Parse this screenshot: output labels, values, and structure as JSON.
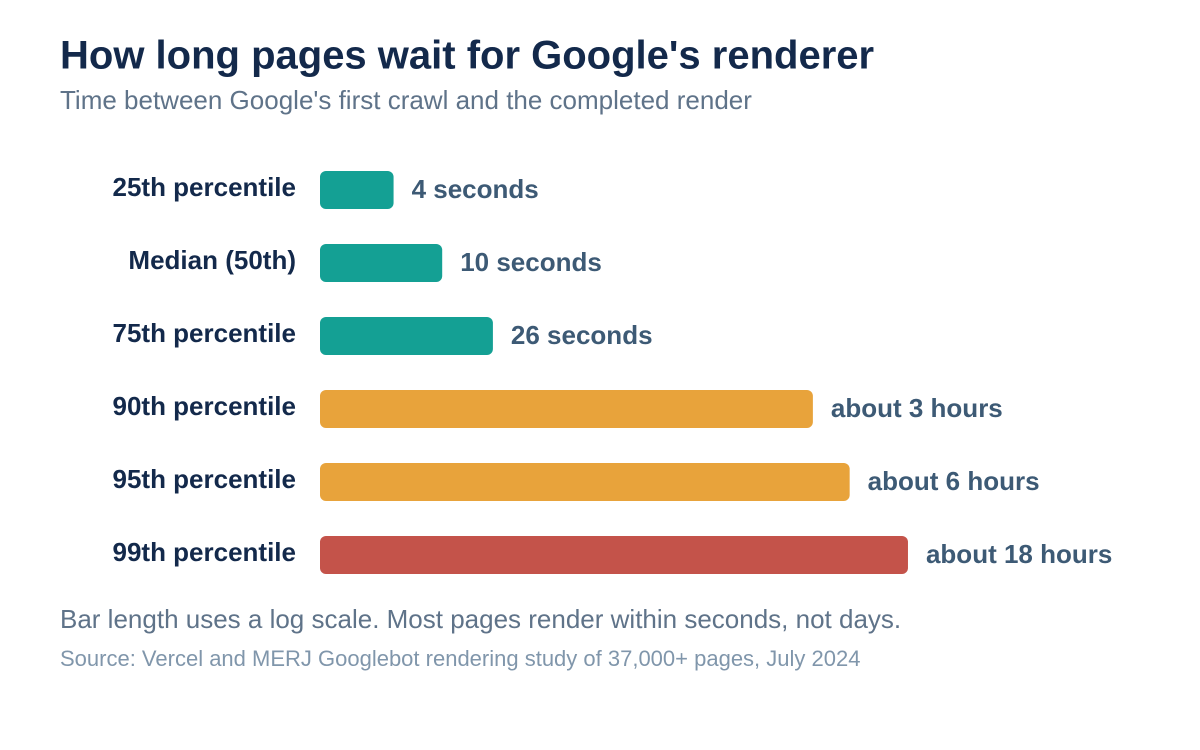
{
  "chart_data": {
    "type": "bar",
    "orientation": "horizontal",
    "log_scale": true,
    "title": "How long pages wait for Google's renderer",
    "subtitle": "Time between Google's first crawl and the completed render",
    "categories": [
      "25th percentile",
      "Median (50th)",
      "75th percentile",
      "90th percentile",
      "95th percentile",
      "99th percentile"
    ],
    "values": [
      4,
      10,
      26,
      10800,
      21600,
      64800
    ],
    "value_labels": [
      "4 seconds",
      "10 seconds",
      "26 seconds",
      "about 3 hours",
      "about 6 hours",
      "about 18 hours"
    ],
    "colors": [
      "#14a094",
      "#14a094",
      "#14a094",
      "#e8a33b",
      "#e8a33b",
      "#c4534a"
    ],
    "xlim": [
      1,
      100000
    ],
    "note": "Bar length uses a log scale. Most pages render within seconds, not days.",
    "source": "Source: Vercel and MERJ Googlebot rendering study of 37,000+ pages, July 2024"
  }
}
